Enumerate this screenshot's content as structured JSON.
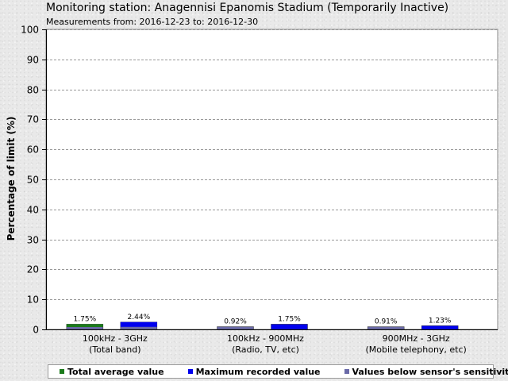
{
  "header": {
    "title": "Monitoring station: Anagennisi Epanomis Stadium (Temporarily Inactive)",
    "subtitle": "Measurements from: 2016-12-23 to: 2016-12-30"
  },
  "colors": {
    "total_average": "#1a7a1a",
    "maximum": "#0000ee",
    "below_sensitivity": "#6a6aa8",
    "plot_background": "#ffffff",
    "grid": "#999999"
  },
  "chart_data": {
    "type": "bar",
    "title": "Monitoring station: Anagennisi Epanomis Stadium (Temporarily Inactive)",
    "subtitle": "Measurements from: 2016-12-23 to: 2016-12-30",
    "ylabel": "Percentage of limit (%)",
    "xlabel": "",
    "ylim": [
      0,
      100
    ],
    "yticks": [
      0,
      10,
      20,
      30,
      40,
      50,
      60,
      70,
      80,
      90,
      100
    ],
    "grid": true,
    "legend_position": "bottom",
    "categories": [
      {
        "line1": "100kHz - 3GHz",
        "line2": "(Total band)"
      },
      {
        "line1": "100kHz - 900MHz",
        "line2": "(Radio, TV, etc)"
      },
      {
        "line1": "900MHz - 3GHz",
        "line2": "(Mobile telephony, etc)"
      }
    ],
    "series": [
      {
        "name": "Total average value",
        "values": [
          1.75,
          0.92,
          0.91
        ],
        "labels": [
          "1.75%",
          "0.92%",
          "0.91%"
        ]
      },
      {
        "name": "Maximum recorded value",
        "values": [
          2.44,
          1.75,
          1.23
        ],
        "labels": [
          "2.44%",
          "1.75%",
          "1.23%"
        ]
      }
    ],
    "below_sensitivity": [
      [
        true,
        true
      ],
      [
        true,
        false
      ],
      [
        true,
        false
      ]
    ],
    "legend": [
      {
        "label": "Total average value",
        "color_key": "total_average"
      },
      {
        "label": "Maximum recorded value",
        "color_key": "maximum"
      },
      {
        "label": "Values below sensor's sensitivity",
        "color_key": "below_sensitivity"
      }
    ]
  }
}
